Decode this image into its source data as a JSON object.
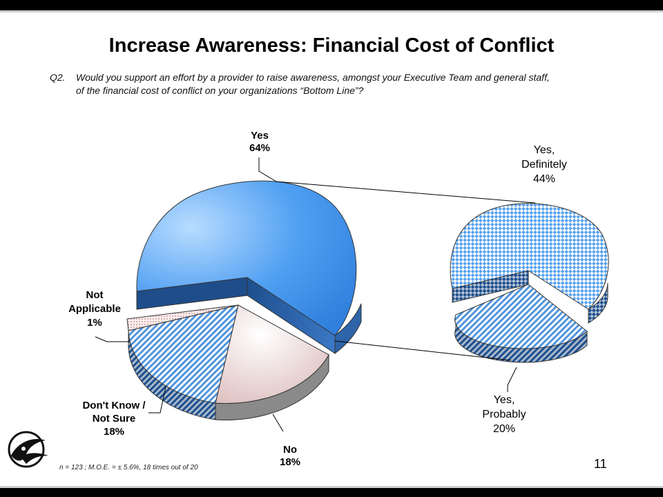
{
  "slide": {
    "title": "Increase Awareness: Financial Cost of Conflict",
    "question_number": "Q2.",
    "question_line1": "Would you support an effort by a provider to raise awareness, amongst your Executive Team and general staff,",
    "question_line2": "of the financial cost of conflict on your organizations “Bottom Line”?",
    "footnote": "n = 123 ;  M.O.E. = ± 5.6%, 18 times out of 20",
    "page_number": "11"
  },
  "chart_data": [
    {
      "type": "pie",
      "slices": [
        {
          "label": "Yes",
          "value": 64,
          "value_label": "64%",
          "color": "#4a9ef5",
          "pattern": "gradient"
        },
        {
          "label": "No",
          "value": 18,
          "value_label": "18%",
          "color": "#e7cccc",
          "pattern": "gradient"
        },
        {
          "label": "Don't Know / Not Sure",
          "value": 18,
          "value_label": "18%",
          "color": "#7fb8ea",
          "pattern": "diagonal-stripes"
        },
        {
          "label": "Not Applicable",
          "value": 1,
          "value_label": "1%",
          "color": "#f2dede",
          "pattern": "dots"
        }
      ],
      "exploded": [
        "Yes"
      ],
      "three_d": true
    },
    {
      "type": "pie",
      "breakdown_of": "Yes",
      "slices": [
        {
          "label": "Yes, Definitely",
          "value": 44,
          "value_label": "44%",
          "color": "#6fb0f0",
          "pattern": "checker"
        },
        {
          "label": "Yes, Probably",
          "value": 20,
          "value_label": "20%",
          "color": "#6fb0f0",
          "pattern": "diagonal-stripes"
        }
      ],
      "three_d": true
    }
  ],
  "labels": {
    "yes": [
      "Yes",
      "64%"
    ],
    "no": [
      "No",
      "18%"
    ],
    "dont_know": [
      "Don't Know /",
      "Not Sure",
      "18%"
    ],
    "not_applicable": [
      "Not",
      "Applicable",
      "1%"
    ],
    "yes_definitely": [
      "Yes,",
      "Definitely",
      "44%"
    ],
    "yes_probably": [
      "Yes,",
      "Probably",
      "20%"
    ]
  },
  "icons": [
    "company-logo-icon"
  ]
}
